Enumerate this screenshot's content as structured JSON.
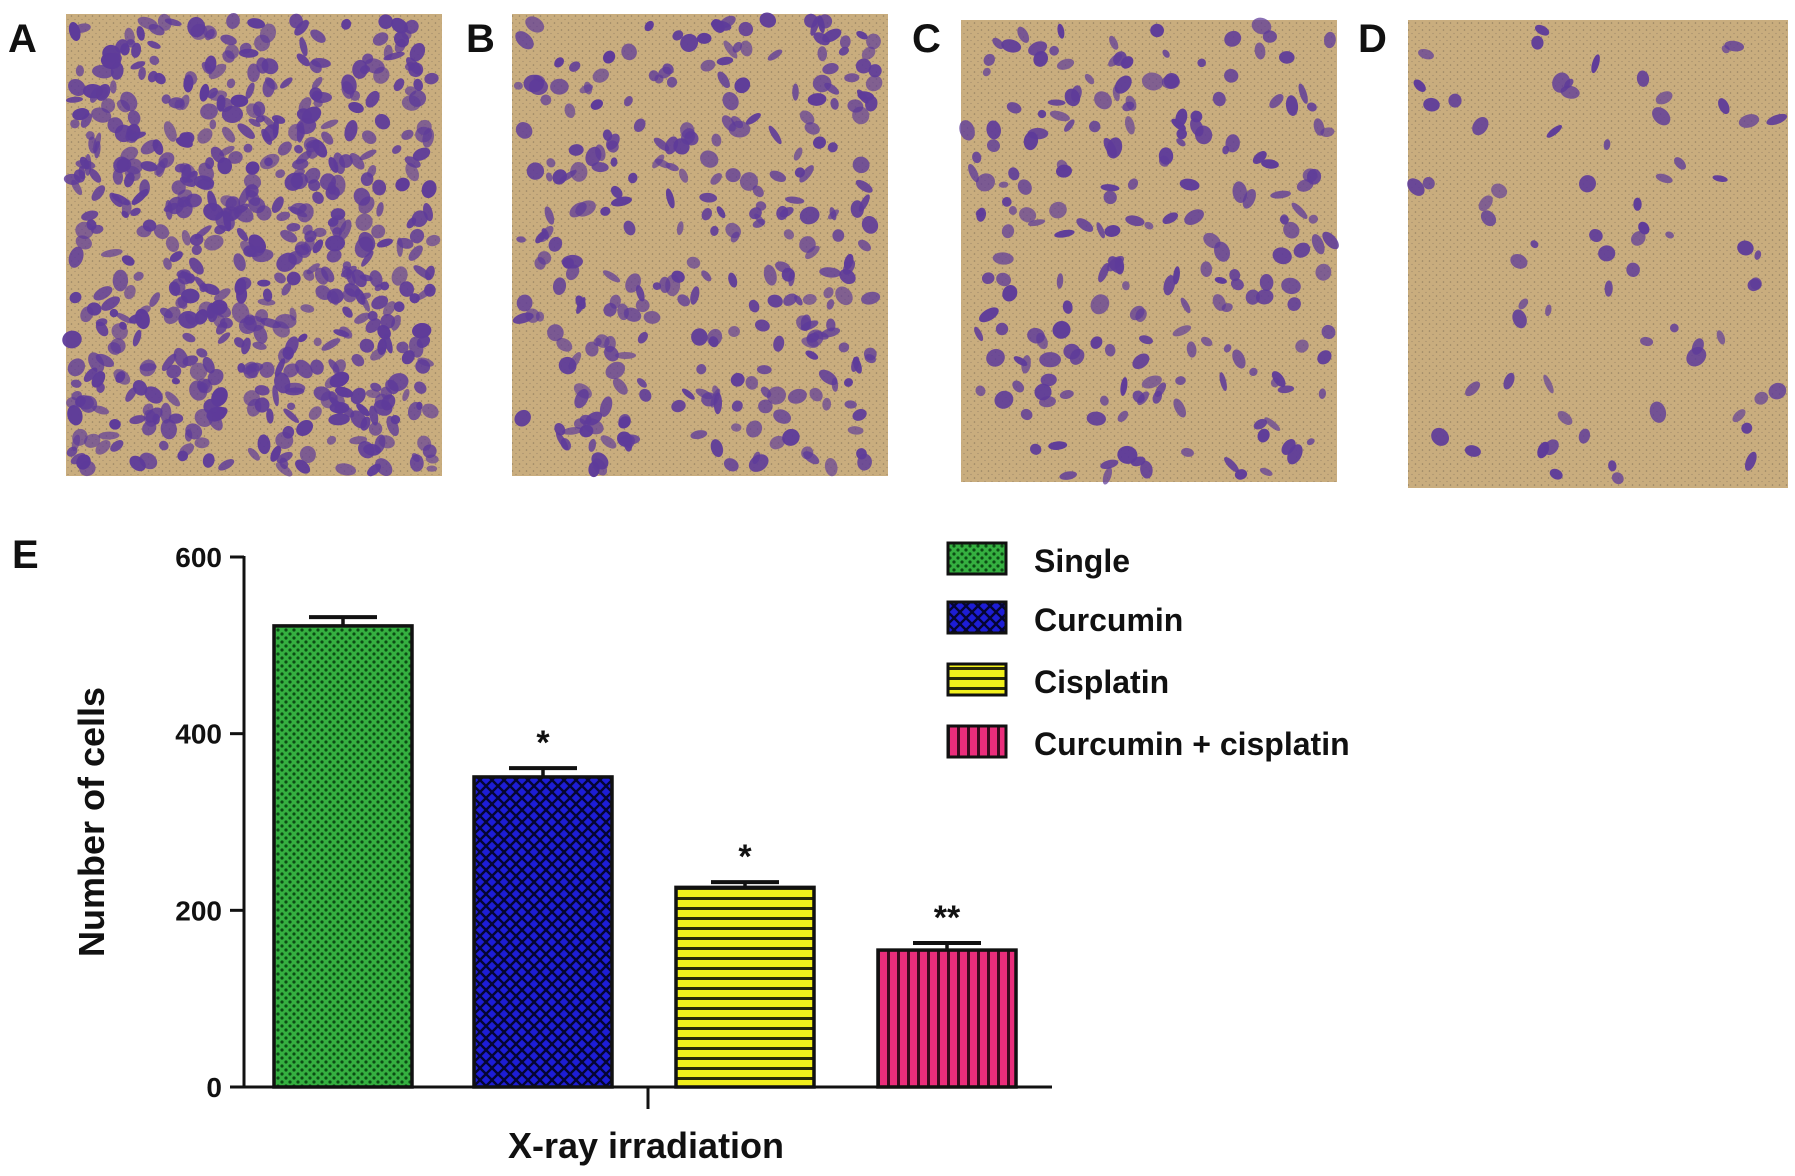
{
  "panels": [
    {
      "label": "A",
      "cell_density": "high"
    },
    {
      "label": "B",
      "cell_density": "medium"
    },
    {
      "label": "C",
      "cell_density": "medium-low"
    },
    {
      "label": "D",
      "cell_density": "low"
    }
  ],
  "colors": {
    "membrane": "#c9ad7e",
    "stain": "#5e3b9a",
    "single": "#3fbf4a",
    "curcumin": "#1d1dd6",
    "cisplatin": "#f2f01c",
    "combo": "#ea2d7b"
  },
  "chart_data": {
    "panel_label": "E",
    "type": "bar",
    "categories": [
      "Single",
      "Curcumin",
      "Cisplatin",
      "Curcumin + cisplatin"
    ],
    "values": [
      522,
      351,
      226,
      155
    ],
    "errors": [
      10,
      10,
      6,
      8
    ],
    "significance": [
      "",
      "*",
      "*",
      "**"
    ],
    "xlabel": "X-ray irradiation",
    "ylabel": "Number of cells",
    "ylim": [
      0,
      600
    ],
    "yticks": [
      0,
      200,
      400,
      600
    ],
    "legend_position": "top-right",
    "legend": [
      {
        "name": "Single",
        "pattern": "dots",
        "color": "#3fbf4a"
      },
      {
        "name": "Curcumin",
        "pattern": "crosshatch",
        "color": "#1d1dd6"
      },
      {
        "name": "Cisplatin",
        "pattern": "horizontal-stripes",
        "color": "#f2f01c"
      },
      {
        "name": "Curcumin + cisplatin",
        "pattern": "vertical-stripes",
        "color": "#ea2d7b"
      }
    ]
  }
}
